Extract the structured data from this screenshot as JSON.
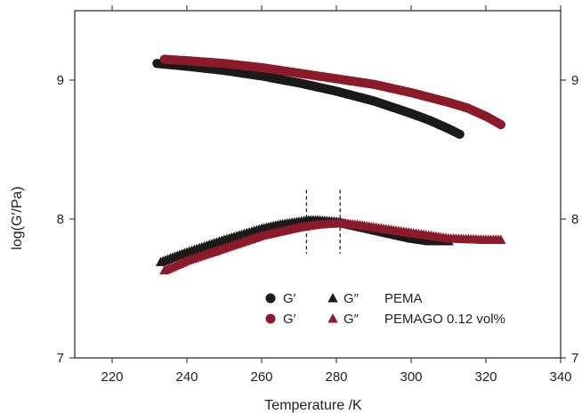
{
  "chart_data": {
    "type": "scatter",
    "xlabel": "Temperature /K",
    "ylabel": "log(G′/Pa)",
    "xlim": [
      210,
      340
    ],
    "ylim": [
      7,
      9.5
    ],
    "x_ticks": [
      220,
      240,
      260,
      280,
      300,
      320,
      340
    ],
    "y_ticks": [
      7,
      8,
      9
    ],
    "grid": false,
    "legend_position": "lower-right",
    "colors": {
      "pema": "#1a1a1a",
      "pemago": "#8b1a2b"
    },
    "series": [
      {
        "name": "G′",
        "material": "PEMA",
        "marker": "circle",
        "color": "#1a1a1a",
        "x": [
          232,
          240,
          250,
          260,
          270,
          280,
          290,
          300,
          305,
          310,
          313
        ],
        "y": [
          9.12,
          9.1,
          9.07,
          9.03,
          8.98,
          8.92,
          8.85,
          8.76,
          8.71,
          8.65,
          8.61
        ]
      },
      {
        "name": "G′",
        "material": "PEMAGO 0.12 vol%",
        "marker": "circle",
        "color": "#8b1a2b",
        "x": [
          234,
          240,
          250,
          260,
          270,
          280,
          290,
          300,
          310,
          315,
          320,
          324
        ],
        "y": [
          9.15,
          9.14,
          9.12,
          9.09,
          9.05,
          9.01,
          8.97,
          8.91,
          8.84,
          8.8,
          8.74,
          8.68
        ]
      },
      {
        "name": "G″",
        "material": "PEMA",
        "marker": "triangle",
        "color": "#1a1a1a",
        "x": [
          233,
          240,
          250,
          260,
          265,
          270,
          272,
          275,
          280,
          285,
          290,
          295,
          300,
          305,
          310
        ],
        "y": [
          7.69,
          7.76,
          7.85,
          7.93,
          7.96,
          7.98,
          7.99,
          7.99,
          7.98,
          7.95,
          7.92,
          7.89,
          7.86,
          7.84,
          7.84
        ]
      },
      {
        "name": "G″",
        "material": "PEMAGO 0.12 vol%",
        "marker": "triangle",
        "color": "#8b1a2b",
        "x": [
          234,
          240,
          250,
          260,
          270,
          275,
          281,
          285,
          290,
          300,
          310,
          320,
          324
        ],
        "y": [
          7.63,
          7.7,
          7.79,
          7.88,
          7.94,
          7.96,
          7.97,
          7.96,
          7.94,
          7.9,
          7.86,
          7.85,
          7.85
        ]
      }
    ],
    "annotations": [
      {
        "type": "vline",
        "x": 272,
        "y_from": 7.75,
        "y_to": 8.21,
        "style": "dashed"
      },
      {
        "type": "vline",
        "x": 281,
        "y_from": 7.75,
        "y_to": 8.21,
        "style": "dashed"
      }
    ],
    "legend": {
      "rows": [
        {
          "circle_label": "G′",
          "triangle_label": "G″",
          "material": "PEMA",
          "color": "#1a1a1a"
        },
        {
          "circle_label": "G′",
          "triangle_label": "G″",
          "material": "PEMAGO 0.12 vol%",
          "color": "#8b1a2b"
        }
      ]
    }
  }
}
